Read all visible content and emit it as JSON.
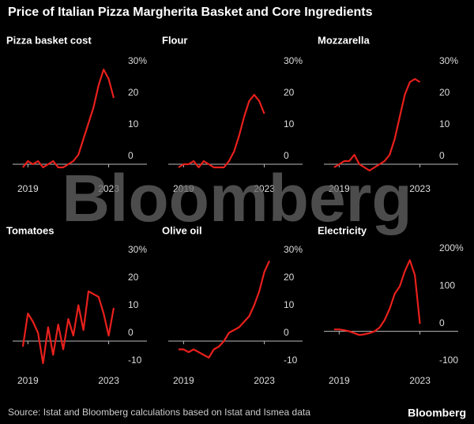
{
  "title": "Price of Italian Pizza Margherita Basket and Core Ingredients",
  "source": "Source: Istat and Bloomberg calculations based on Istat and Ismea data",
  "logo": "Bloomberg",
  "watermark": "Bloomberg",
  "chart_data": [
    {
      "type": "line",
      "title": "Pizza basket cost",
      "color": "#e8201c",
      "zero_line": true,
      "x": [
        2018.75,
        2019,
        2019.25,
        2019.5,
        2019.75,
        2020,
        2020.25,
        2020.5,
        2020.75,
        2021,
        2021.25,
        2021.5,
        2021.75,
        2022,
        2022.25,
        2022.5,
        2022.75,
        2023,
        2023.25
      ],
      "values": [
        -1,
        1,
        0,
        1,
        -1,
        0,
        1,
        -1,
        -1,
        0,
        1,
        3,
        8,
        13,
        18,
        25,
        30,
        27,
        21
      ],
      "xlim": [
        2018.4,
        2023.8
      ],
      "xticks": [
        2019,
        2023
      ],
      "ylim": [
        -4,
        32
      ],
      "yticks": [
        {
          "value": 30,
          "label": "30%"
        },
        20,
        10,
        0
      ]
    },
    {
      "type": "line",
      "title": "Flour",
      "color": "#e8201c",
      "zero_line": true,
      "x": [
        2018.75,
        2019,
        2019.25,
        2019.5,
        2019.75,
        2020,
        2020.25,
        2020.5,
        2020.75,
        2021,
        2021.25,
        2021.5,
        2021.75,
        2022,
        2022.25,
        2022.5,
        2022.75,
        2023,
        2023.25
      ],
      "values": [
        -1,
        0,
        0,
        1,
        -1,
        1,
        0,
        -1,
        -1,
        -1,
        1,
        4,
        9,
        15,
        20,
        22,
        20,
        16,
        null
      ],
      "xlim": [
        2018.4,
        2023.8
      ],
      "xticks": [
        2019,
        2023
      ],
      "ylim": [
        -4,
        32
      ],
      "yticks": [
        {
          "value": 30,
          "label": "30%"
        },
        20,
        10,
        0
      ]
    },
    {
      "type": "line",
      "title": "Mozzarella",
      "color": "#e8201c",
      "zero_line": true,
      "x": [
        2018.75,
        2019,
        2019.25,
        2019.5,
        2019.75,
        2020,
        2020.25,
        2020.5,
        2020.75,
        2021,
        2021.25,
        2021.5,
        2021.75,
        2022,
        2022.25,
        2022.5,
        2022.75,
        2023,
        2023.25
      ],
      "values": [
        -1,
        0,
        1,
        1,
        3,
        0,
        -1,
        -2,
        -1,
        0,
        1,
        3,
        8,
        15,
        22,
        26,
        27,
        26,
        null
      ],
      "xlim": [
        2018.4,
        2023.8
      ],
      "xticks": [
        2019,
        2023
      ],
      "ylim": [
        -4,
        32
      ],
      "yticks": [
        {
          "value": 30,
          "label": "30%"
        },
        20,
        10,
        0
      ]
    },
    {
      "type": "line",
      "title": "Tomatoes",
      "color": "#e8201c",
      "zero_line": true,
      "x": [
        2018.75,
        2019,
        2019.25,
        2019.5,
        2019.75,
        2020,
        2020.25,
        2020.5,
        2020.75,
        2021,
        2021.25,
        2021.5,
        2021.75,
        2022,
        2022.25,
        2022.5,
        2022.75,
        2023,
        2023.25
      ],
      "values": [
        -2,
        10,
        7,
        3,
        -8,
        5,
        -5,
        6,
        -3,
        8,
        2,
        13,
        4,
        18,
        17,
        16,
        10,
        2,
        12
      ],
      "xlim": [
        2018.4,
        2023.8
      ],
      "xticks": [
        2019,
        2023
      ],
      "ylim": [
        -10,
        32
      ],
      "yticks": [
        {
          "value": 30,
          "label": "30%"
        },
        20,
        10,
        0,
        -10
      ]
    },
    {
      "type": "line",
      "title": "Olive oil",
      "color": "#e8201c",
      "zero_line": true,
      "x": [
        2018.75,
        2019,
        2019.25,
        2019.5,
        2019.75,
        2020,
        2020.25,
        2020.5,
        2020.75,
        2021,
        2021.25,
        2021.5,
        2021.75,
        2022,
        2022.25,
        2022.5,
        2022.75,
        2023,
        2023.25
      ],
      "values": [
        -3,
        -3,
        -4,
        -3,
        -4,
        -5,
        -6,
        -3,
        -2,
        0,
        3,
        4,
        5,
        7,
        9,
        13,
        18,
        25,
        29
      ],
      "xlim": [
        2018.4,
        2023.8
      ],
      "xticks": [
        2019,
        2023
      ],
      "ylim": [
        -10,
        32
      ],
      "yticks": [
        {
          "value": 30,
          "label": "30%"
        },
        20,
        10,
        0,
        -10
      ]
    },
    {
      "type": "line",
      "title": "Electricity",
      "color": "#e8201c",
      "zero_line": true,
      "x": [
        2018.75,
        2019,
        2019.25,
        2019.5,
        2019.75,
        2020,
        2020.25,
        2020.5,
        2020.75,
        2021,
        2021.25,
        2021.5,
        2021.75,
        2022,
        2022.25,
        2022.5,
        2022.75,
        2023,
        2023.25
      ],
      "values": [
        5,
        5,
        3,
        0,
        -5,
        -10,
        -8,
        -5,
        0,
        10,
        30,
        60,
        100,
        120,
        160,
        190,
        150,
        20,
        null
      ],
      "xlim": [
        2018.4,
        2023.8
      ],
      "xticks": [
        2019,
        2023
      ],
      "ylim": [
        -100,
        210
      ],
      "yticks": [
        {
          "value": 200,
          "label": "200%"
        },
        100,
        0,
        -100
      ]
    }
  ]
}
